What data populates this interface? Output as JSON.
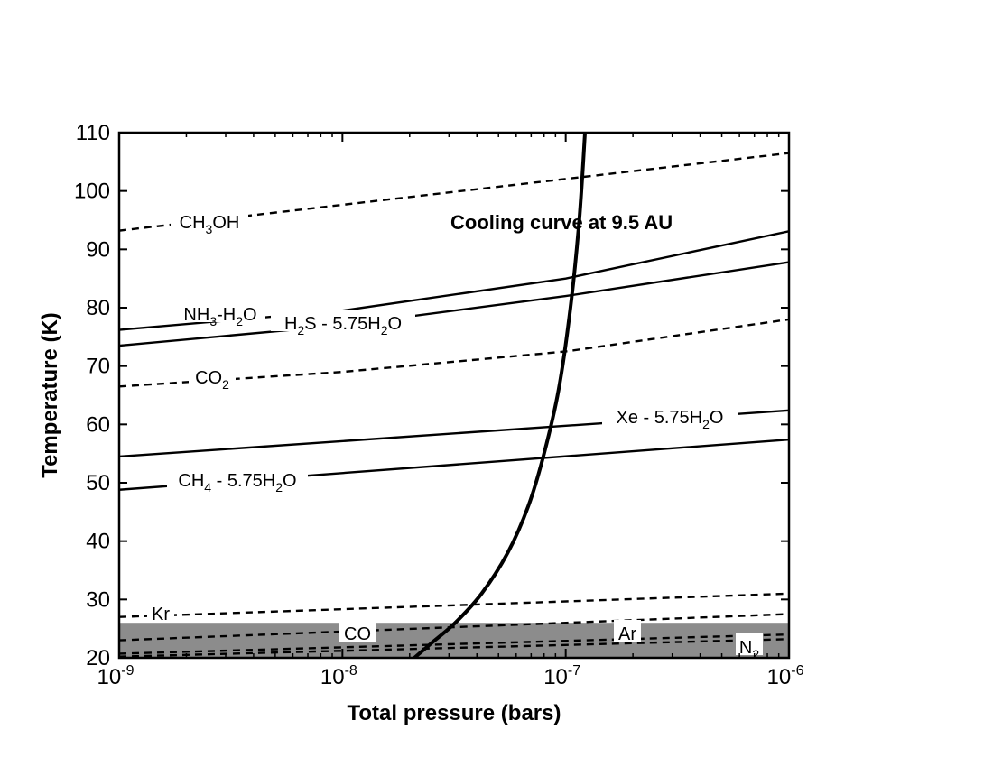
{
  "chart_data": {
    "type": "line",
    "title": "",
    "xlabel": "Total pressure (bars)",
    "ylabel": "Temperature (K)",
    "x_scale": "log",
    "xlim": [
      1e-09,
      1e-06
    ],
    "ylim": [
      20,
      110
    ],
    "x_ticks": [
      {
        "value": 1e-09,
        "base": "10",
        "exp": "-9"
      },
      {
        "value": 1e-08,
        "base": "10",
        "exp": "-8"
      },
      {
        "value": 1e-07,
        "base": "10",
        "exp": "-7"
      },
      {
        "value": 1e-06,
        "base": "10",
        "exp": "-6"
      }
    ],
    "y_ticks": [
      "20",
      "30",
      "40",
      "50",
      "60",
      "70",
      "80",
      "90",
      "100",
      "110"
    ],
    "grid": false,
    "shaded_region": {
      "y": [
        20,
        26
      ],
      "color": "#8c8c8c"
    },
    "series": [
      {
        "name": "CH3OH",
        "style": "dashed",
        "x": [
          1e-09,
          1e-06
        ],
        "y": [
          93.2,
          106.5
        ],
        "label_parts": [
          {
            "t": "CH"
          },
          {
            "t": "3",
            "sub": true
          },
          {
            "t": "OH"
          }
        ]
      },
      {
        "name": "NH3-H2O",
        "style": "solid",
        "x": [
          1e-09,
          1e-08,
          1e-07,
          1e-06
        ],
        "y": [
          76.2,
          79.5,
          85.0,
          93.1
        ],
        "label_parts": [
          {
            "t": "NH"
          },
          {
            "t": "3",
            "sub": true
          },
          {
            "t": "-H"
          },
          {
            "t": "2",
            "sub": true
          },
          {
            "t": "O"
          }
        ]
      },
      {
        "name": "H2S - 5.75H2O",
        "style": "solid",
        "x": [
          1e-09,
          1e-08,
          1e-07,
          1e-06
        ],
        "y": [
          73.5,
          77.0,
          82.0,
          87.8
        ],
        "label_parts": [
          {
            "t": "H"
          },
          {
            "t": "2",
            "sub": true
          },
          {
            "t": "S - 5.75H"
          },
          {
            "t": "2",
            "sub": true
          },
          {
            "t": "O"
          }
        ]
      },
      {
        "name": "CO2",
        "style": "dashed",
        "x": [
          1e-09,
          1e-08,
          1e-07,
          1e-06
        ],
        "y": [
          66.5,
          69.0,
          72.5,
          78.0
        ],
        "label_parts": [
          {
            "t": "CO"
          },
          {
            "t": "2",
            "sub": true
          }
        ]
      },
      {
        "name": "Xe - 5.75H2O",
        "style": "solid",
        "x": [
          1e-09,
          1e-06
        ],
        "y": [
          54.5,
          62.4
        ],
        "label_parts": [
          {
            "t": "Xe - 5.75H"
          },
          {
            "t": "2",
            "sub": true
          },
          {
            "t": "O"
          }
        ]
      },
      {
        "name": "CH4 - 5.75H2O",
        "style": "solid",
        "x": [
          1e-09,
          1e-06
        ],
        "y": [
          48.8,
          57.4
        ],
        "label_parts": [
          {
            "t": "CH"
          },
          {
            "t": "4",
            "sub": true
          },
          {
            "t": " - 5.75H"
          },
          {
            "t": "2",
            "sub": true
          },
          {
            "t": "O"
          }
        ]
      },
      {
        "name": "Kr",
        "style": "dashed",
        "x": [
          1e-09,
          1e-06
        ],
        "y": [
          27.0,
          31.0
        ],
        "label_parts": [
          {
            "t": "Kr"
          }
        ]
      },
      {
        "name": "CO",
        "style": "dashed",
        "x": [
          1e-09,
          1e-06
        ],
        "y": [
          23.0,
          27.5
        ],
        "label_parts": [
          {
            "t": "CO"
          }
        ]
      },
      {
        "name": "Ar",
        "style": "dashed",
        "x": [
          1e-09,
          1e-06
        ],
        "y": [
          20.7,
          24.0
        ],
        "label_parts": [
          {
            "t": "Ar"
          }
        ]
      },
      {
        "name": "N2",
        "style": "dashed",
        "x": [
          1e-09,
          1e-06
        ],
        "y": [
          20.2,
          23.2
        ],
        "label_parts": [
          {
            "t": "N"
          },
          {
            "t": "2",
            "sub": true
          }
        ]
      },
      {
        "name": "Cooling curve at 9.5 AU",
        "style": "thick",
        "x": [
          2.1e-08,
          2.5e-08,
          3.2e-08,
          4.2e-08,
          5.5e-08,
          6.8e-08,
          8e-08,
          9.3e-08,
          1.05e-07,
          1.15e-07,
          1.22e-07
        ],
        "y": [
          20,
          22.5,
          26,
          31,
          38,
          46,
          55,
          66,
          80,
          95,
          110
        ],
        "label_parts": [
          {
            "t": "Cooling curve at 9.5 AU"
          }
        ]
      }
    ]
  }
}
